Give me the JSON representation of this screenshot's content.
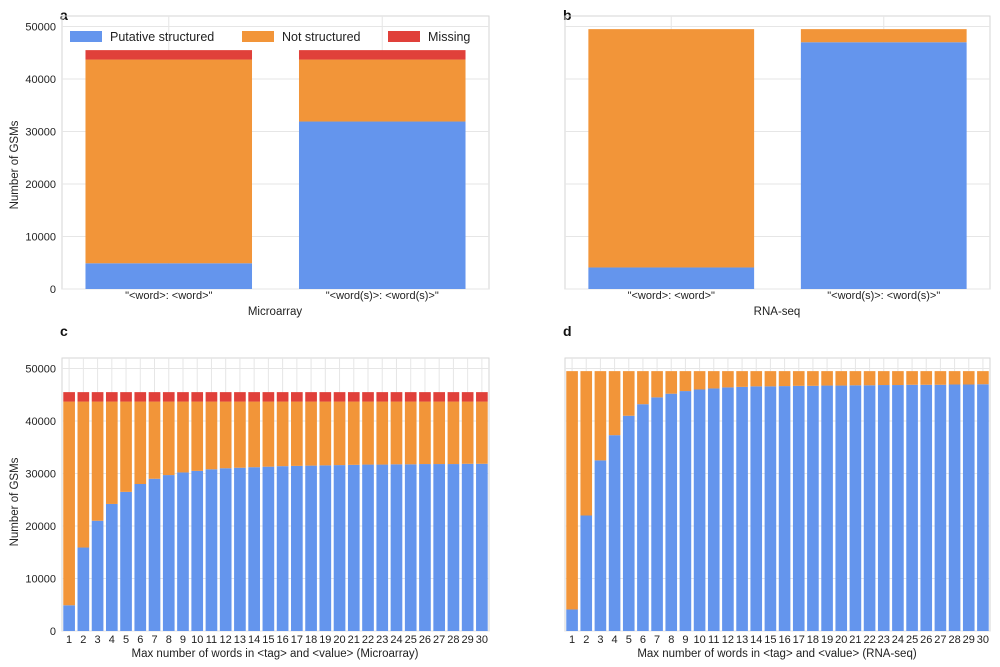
{
  "colors": {
    "structured": "#6495ED",
    "not_structured": "#F29539",
    "missing": "#E0403A"
  },
  "legend": [
    "Putative structured",
    "Not structured",
    "Missing"
  ],
  "chart_data": [
    {
      "panel": "a",
      "type": "bar",
      "stacked": true,
      "categories": [
        "\"<word>: <word>\"",
        "\"<word(s)>: <word(s)>\""
      ],
      "series": [
        {
          "name": "Putative structured",
          "values": [
            4900,
            31900
          ]
        },
        {
          "name": "Not structured",
          "values": [
            38800,
            11800
          ]
        },
        {
          "name": "Missing",
          "values": [
            1800,
            1800
          ]
        }
      ],
      "xlabel": "Microarray",
      "ylabel": "Number of GSMs",
      "ylim": [
        0,
        52000
      ],
      "yticks": [
        "0",
        "10000",
        "20000",
        "30000",
        "40000",
        "50000"
      ],
      "legend_position": "top"
    },
    {
      "panel": "b",
      "type": "bar",
      "stacked": true,
      "categories": [
        "\"<word>: <word>\"",
        "\"<word(s)>: <word(s)>\""
      ],
      "series": [
        {
          "name": "Putative structured",
          "values": [
            4100,
            47000
          ]
        },
        {
          "name": "Not structured",
          "values": [
            45400,
            2500
          ]
        },
        {
          "name": "Missing",
          "values": [
            0,
            0
          ]
        }
      ],
      "xlabel": "RNA-seq",
      "ylabel": "",
      "ylim": [
        0,
        52000
      ],
      "yticks": [],
      "legend_position": "none"
    },
    {
      "panel": "c",
      "type": "bar",
      "stacked": true,
      "categories": [
        "1",
        "2",
        "3",
        "4",
        "5",
        "6",
        "7",
        "8",
        "9",
        "10",
        "11",
        "12",
        "13",
        "14",
        "15",
        "16",
        "17",
        "18",
        "19",
        "20",
        "21",
        "22",
        "23",
        "24",
        "25",
        "26",
        "27",
        "28",
        "29",
        "30"
      ],
      "series": [
        {
          "name": "Putative structured",
          "values": [
            4900,
            15900,
            21000,
            24200,
            26500,
            28000,
            29000,
            29700,
            30200,
            30500,
            30800,
            31000,
            31100,
            31200,
            31300,
            31400,
            31450,
            31500,
            31550,
            31600,
            31650,
            31700,
            31700,
            31750,
            31750,
            31800,
            31800,
            31800,
            31850,
            31850
          ]
        },
        {
          "name": "Not structured",
          "values": [
            38800,
            27800,
            22700,
            19500,
            17200,
            15700,
            14700,
            14000,
            13500,
            13200,
            12900,
            12700,
            12600,
            12500,
            12400,
            12300,
            12250,
            12200,
            12150,
            12100,
            12050,
            12000,
            12000,
            11950,
            11950,
            11900,
            11900,
            11900,
            11850,
            11850
          ]
        },
        {
          "name": "Missing",
          "values": [
            1800,
            1800,
            1800,
            1800,
            1800,
            1800,
            1800,
            1800,
            1800,
            1800,
            1800,
            1800,
            1800,
            1800,
            1800,
            1800,
            1800,
            1800,
            1800,
            1800,
            1800,
            1800,
            1800,
            1800,
            1800,
            1800,
            1800,
            1800,
            1800,
            1800
          ]
        }
      ],
      "xlabel": "Max number of words in <tag> and <value> (Microarray)",
      "ylabel": "Number of GSMs",
      "ylim": [
        0,
        52000
      ],
      "yticks": [
        "0",
        "10000",
        "20000",
        "30000",
        "40000",
        "50000"
      ],
      "legend_position": "none"
    },
    {
      "panel": "d",
      "type": "bar",
      "stacked": true,
      "categories": [
        "1",
        "2",
        "3",
        "4",
        "5",
        "6",
        "7",
        "8",
        "9",
        "10",
        "11",
        "12",
        "13",
        "14",
        "15",
        "16",
        "17",
        "18",
        "19",
        "20",
        "21",
        "22",
        "23",
        "24",
        "25",
        "26",
        "27",
        "28",
        "29",
        "30"
      ],
      "series": [
        {
          "name": "Putative structured",
          "values": [
            4100,
            22000,
            32500,
            37300,
            41000,
            43200,
            44500,
            45200,
            45700,
            46000,
            46200,
            46400,
            46500,
            46600,
            46600,
            46650,
            46700,
            46700,
            46750,
            46750,
            46800,
            46800,
            46850,
            46850,
            46900,
            46900,
            46900,
            46950,
            46950,
            47000
          ]
        },
        {
          "name": "Not structured",
          "values": [
            45400,
            27500,
            17000,
            12200,
            8500,
            6300,
            5000,
            4300,
            3800,
            3500,
            3300,
            3100,
            3000,
            2900,
            2900,
            2850,
            2800,
            2800,
            2750,
            2750,
            2700,
            2700,
            2650,
            2650,
            2600,
            2600,
            2600,
            2550,
            2550,
            2500
          ]
        },
        {
          "name": "Missing",
          "values": [
            0,
            0,
            0,
            0,
            0,
            0,
            0,
            0,
            0,
            0,
            0,
            0,
            0,
            0,
            0,
            0,
            0,
            0,
            0,
            0,
            0,
            0,
            0,
            0,
            0,
            0,
            0,
            0,
            0,
            0
          ]
        }
      ],
      "xlabel": "Max number of words in <tag> and <value> (RNA-seq)",
      "ylabel": "",
      "ylim": [
        0,
        52000
      ],
      "yticks": [],
      "legend_position": "none"
    }
  ]
}
